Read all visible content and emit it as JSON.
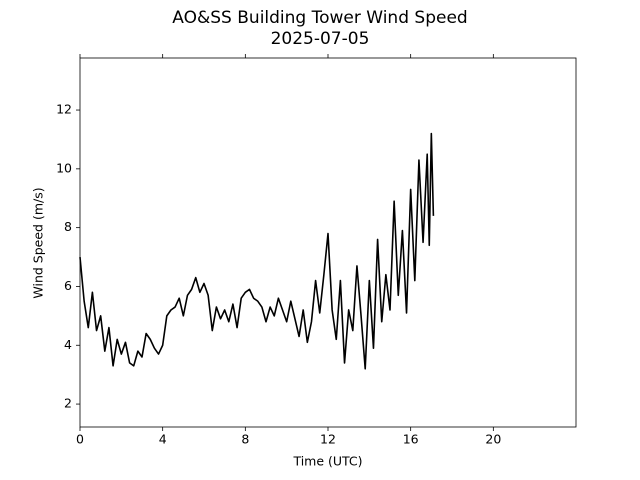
{
  "chart_data": {
    "type": "line",
    "title": "AO&SS Building Tower Wind Speed",
    "subtitle": "2025-07-05",
    "xlabel": "Time (UTC)",
    "ylabel": "Wind Speed (m/s)",
    "color": "#000000",
    "x": [
      0,
      0.2,
      0.4,
      0.6,
      0.8,
      1.0,
      1.2,
      1.4,
      1.6,
      1.8,
      2.0,
      2.2,
      2.4,
      2.6,
      2.8,
      3.0,
      3.2,
      3.4,
      3.6,
      3.8,
      4.0,
      4.2,
      4.4,
      4.6,
      4.8,
      5.0,
      5.2,
      5.4,
      5.6,
      5.8,
      6.0,
      6.2,
      6.4,
      6.6,
      6.8,
      7.0,
      7.2,
      7.4,
      7.6,
      7.8,
      8.0,
      8.2,
      8.4,
      8.6,
      8.8,
      9.0,
      9.2,
      9.4,
      9.6,
      9.8,
      10.0,
      10.2,
      10.4,
      10.6,
      10.8,
      11.0,
      11.2,
      11.4,
      11.6,
      11.8,
      12.0,
      12.2,
      12.4,
      12.6,
      12.8,
      13.0,
      13.2,
      13.4,
      13.6,
      13.8,
      14.0,
      14.2,
      14.4,
      14.6,
      14.8,
      15.0,
      15.2,
      15.4,
      15.6,
      15.8,
      16.0,
      16.2,
      16.4,
      16.6,
      16.8,
      16.9,
      17.0,
      17.1
    ],
    "values": [
      7.0,
      5.5,
      4.6,
      5.8,
      4.5,
      5.0,
      3.8,
      4.6,
      3.3,
      4.2,
      3.7,
      4.1,
      3.4,
      3.3,
      3.8,
      3.6,
      4.4,
      4.2,
      3.9,
      3.7,
      4.0,
      5.0,
      5.2,
      5.3,
      5.6,
      5.0,
      5.7,
      5.9,
      6.3,
      5.8,
      6.1,
      5.7,
      4.5,
      5.3,
      4.9,
      5.2,
      4.8,
      5.4,
      4.6,
      5.6,
      5.8,
      5.9,
      5.6,
      5.5,
      5.3,
      4.8,
      5.3,
      5.0,
      5.6,
      5.2,
      4.8,
      5.5,
      4.9,
      4.3,
      5.2,
      4.1,
      4.8,
      6.2,
      5.1,
      6.4,
      7.8,
      5.2,
      4.2,
      6.2,
      3.4,
      5.2,
      4.5,
      6.7,
      5.0,
      3.2,
      6.2,
      3.9,
      7.6,
      4.8,
      6.4,
      5.2,
      8.9,
      5.7,
      7.9,
      5.1,
      9.3,
      6.2,
      10.3,
      7.5,
      10.5,
      7.4,
      11.2,
      8.4
    ],
    "xlim": [
      0,
      24
    ],
    "ylim": [
      1.22,
      13.77
    ],
    "xticks": [
      0,
      4,
      8,
      12,
      16,
      20
    ],
    "yticks": [
      2,
      4,
      6,
      8,
      10,
      12
    ]
  }
}
